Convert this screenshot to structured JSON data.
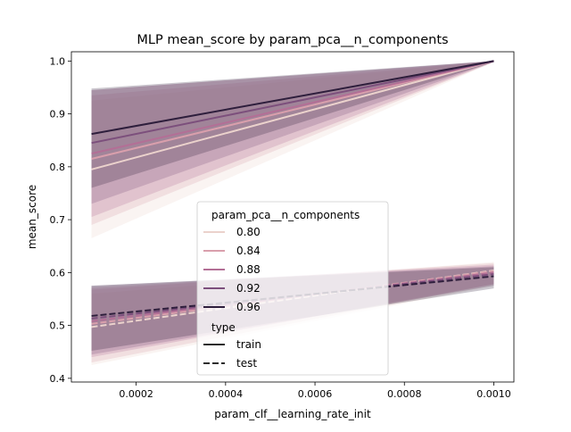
{
  "chart_data": {
    "type": "line",
    "title": "MLP mean_score by param_pca__n_components",
    "xlabel": "param_clf__learning_rate_init",
    "ylabel": "mean_score",
    "xlim": [
      5.5e-05,
      0.001045
    ],
    "ylim": [
      0.393,
      1.0175
    ],
    "x_ticks": [
      0.0002,
      0.0004,
      0.0006,
      0.0008,
      0.001
    ],
    "x_tick_labels": [
      "0.0002",
      "0.0004",
      "0.0006",
      "0.0008",
      "0.0010"
    ],
    "y_ticks": [
      0.4,
      0.5,
      0.6,
      0.7,
      0.8,
      0.9,
      1.0
    ],
    "y_tick_labels": [
      "0.4",
      "0.5",
      "0.6",
      "0.7",
      "0.8",
      "0.9",
      "1.0"
    ],
    "grid": false,
    "legend": {
      "placement": "lower-center",
      "hue_title": "param_pca__n_components",
      "style_title": "type",
      "hue_entries": [
        {
          "label": "0.80",
          "color": "#ebd2cc"
        },
        {
          "label": "0.84",
          "color": "#d99fac"
        },
        {
          "label": "0.88",
          "color": "#b36f96"
        },
        {
          "label": "0.92",
          "color": "#7c4f7c"
        },
        {
          "label": "0.96",
          "color": "#2e1e3c"
        }
      ],
      "style_entries": [
        {
          "label": "train",
          "dash": "solid"
        },
        {
          "label": "test",
          "dash": "dashed"
        }
      ]
    },
    "x": [
      0.0001,
      0.001
    ],
    "series": [
      {
        "hue": "0.80",
        "type": "train",
        "color": "#ebd2cc",
        "values": [
          0.795,
          1.0
        ],
        "ci_low": [
          0.665,
          0.998
        ],
        "ci_high": [
          0.925,
          1.0
        ]
      },
      {
        "hue": "0.84",
        "type": "train",
        "color": "#d99fac",
        "values": [
          0.815,
          1.0
        ],
        "ci_low": [
          0.69,
          0.998
        ],
        "ci_high": [
          0.935,
          1.0
        ]
      },
      {
        "hue": "0.88",
        "type": "train",
        "color": "#b36f96",
        "values": [
          0.825,
          1.0
        ],
        "ci_low": [
          0.705,
          0.998
        ],
        "ci_high": [
          0.945,
          1.0
        ]
      },
      {
        "hue": "0.92",
        "type": "train",
        "color": "#7c4f7c",
        "values": [
          0.845,
          1.0
        ],
        "ci_low": [
          0.73,
          0.998
        ],
        "ci_high": [
          0.945,
          1.0
        ]
      },
      {
        "hue": "0.96",
        "type": "train",
        "color": "#2e1e3c",
        "values": [
          0.862,
          1.0
        ],
        "ci_low": [
          0.76,
          0.998
        ],
        "ci_high": [
          0.948,
          1.0
        ]
      },
      {
        "hue": "0.80",
        "type": "test",
        "color": "#ebd2cc",
        "values": [
          0.497,
          0.604
        ],
        "ci_low": [
          0.425,
          0.575
        ],
        "ci_high": [
          0.56,
          0.62
        ]
      },
      {
        "hue": "0.84",
        "type": "test",
        "color": "#d99fac",
        "values": [
          0.503,
          0.603
        ],
        "ci_low": [
          0.43,
          0.578
        ],
        "ci_high": [
          0.568,
          0.618
        ]
      },
      {
        "hue": "0.88",
        "type": "test",
        "color": "#b36f96",
        "values": [
          0.508,
          0.6
        ],
        "ci_low": [
          0.44,
          0.578
        ],
        "ci_high": [
          0.572,
          0.615
        ]
      },
      {
        "hue": "0.92",
        "type": "test",
        "color": "#7c4f7c",
        "values": [
          0.513,
          0.597
        ],
        "ci_low": [
          0.445,
          0.575
        ],
        "ci_high": [
          0.575,
          0.612
        ]
      },
      {
        "hue": "0.96",
        "type": "test",
        "color": "#2e1e3c",
        "values": [
          0.518,
          0.593
        ],
        "ci_low": [
          0.452,
          0.57
        ],
        "ci_high": [
          0.575,
          0.61
        ]
      }
    ]
  }
}
